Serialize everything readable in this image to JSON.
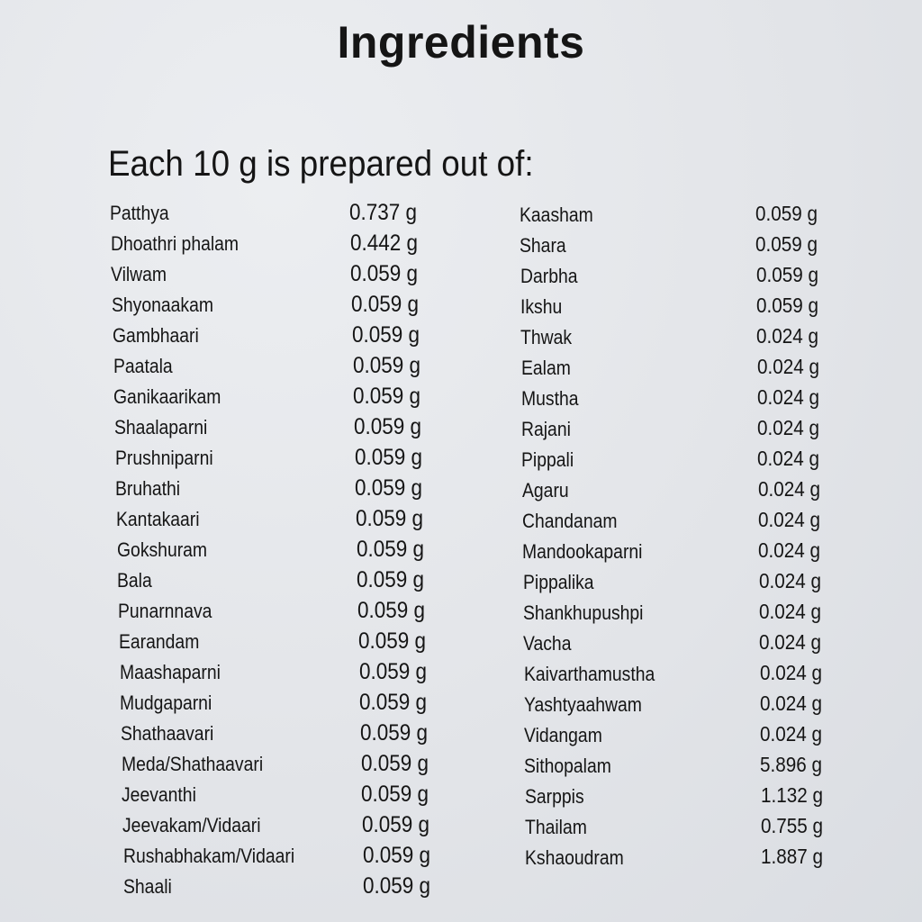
{
  "title": "Ingredients",
  "subtitle": "Each 10 g is prepared out of:",
  "left_column": [
    {
      "name": "Patthya",
      "amount": "0.737 g"
    },
    {
      "name": "Dhoathri phalam",
      "amount": "0.442 g"
    },
    {
      "name": "Vilwam",
      "amount": "0.059 g"
    },
    {
      "name": "Shyonaakam",
      "amount": "0.059 g"
    },
    {
      "name": "Gambhaari",
      "amount": "0.059 g"
    },
    {
      "name": "Paatala",
      "amount": "0.059 g"
    },
    {
      "name": "Ganikaarikam",
      "amount": "0.059 g"
    },
    {
      "name": "Shaalaparni",
      "amount": "0.059 g"
    },
    {
      "name": "Prushniparni",
      "amount": "0.059 g"
    },
    {
      "name": "Bruhathi",
      "amount": "0.059 g"
    },
    {
      "name": "Kantakaari",
      "amount": "0.059 g"
    },
    {
      "name": "Gokshuram",
      "amount": "0.059 g"
    },
    {
      "name": "Bala",
      "amount": "0.059 g"
    },
    {
      "name": "Punarnnava",
      "amount": "0.059 g"
    },
    {
      "name": "Earandam",
      "amount": "0.059 g"
    },
    {
      "name": "Maashaparni",
      "amount": "0.059 g"
    },
    {
      "name": "Mudgaparni",
      "amount": "0.059 g"
    },
    {
      "name": "Shathaavari",
      "amount": "0.059 g"
    },
    {
      "name": "Meda/Shathaavari",
      "amount": "0.059 g"
    },
    {
      "name": "Jeevanthi",
      "amount": "0.059 g"
    },
    {
      "name": "Jeevakam/Vidaari",
      "amount": "0.059 g"
    },
    {
      "name": "Rushabhakam/Vidaari",
      "amount": "0.059 g"
    },
    {
      "name": "Shaali",
      "amount": "0.059 g"
    }
  ],
  "right_column": [
    {
      "name": "Kaasham",
      "amount": "0.059 g"
    },
    {
      "name": "Shara",
      "amount": "0.059 g"
    },
    {
      "name": "Darbha",
      "amount": "0.059 g"
    },
    {
      "name": "Ikshu",
      "amount": "0.059 g"
    },
    {
      "name": "Thwak",
      "amount": "0.024 g"
    },
    {
      "name": "Ealam",
      "amount": "0.024 g"
    },
    {
      "name": "Mustha",
      "amount": "0.024 g"
    },
    {
      "name": "Rajani",
      "amount": "0.024 g"
    },
    {
      "name": "Pippali",
      "amount": "0.024 g"
    },
    {
      "name": "Agaru",
      "amount": "0.024 g"
    },
    {
      "name": "Chandanam",
      "amount": "0.024 g"
    },
    {
      "name": "Mandookaparni",
      "amount": "0.024 g"
    },
    {
      "name": "Pippalika",
      "amount": "0.024 g"
    },
    {
      "name": "Shankhupushpi",
      "amount": "0.024 g"
    },
    {
      "name": "Vacha",
      "amount": "0.024 g"
    },
    {
      "name": "Kaivarthamustha",
      "amount": "0.024 g"
    },
    {
      "name": "Yashtyaahwam",
      "amount": "0.024 g"
    },
    {
      "name": "Vidangam",
      "amount": "0.024 g"
    },
    {
      "name": "Sithopalam",
      "amount": "5.896 g"
    },
    {
      "name": "Sarppis",
      "amount": "1.132 g"
    },
    {
      "name": "Thailam",
      "amount": "0.755 g"
    },
    {
      "name": "Kshaoudram",
      "amount": "1.887 g"
    }
  ]
}
